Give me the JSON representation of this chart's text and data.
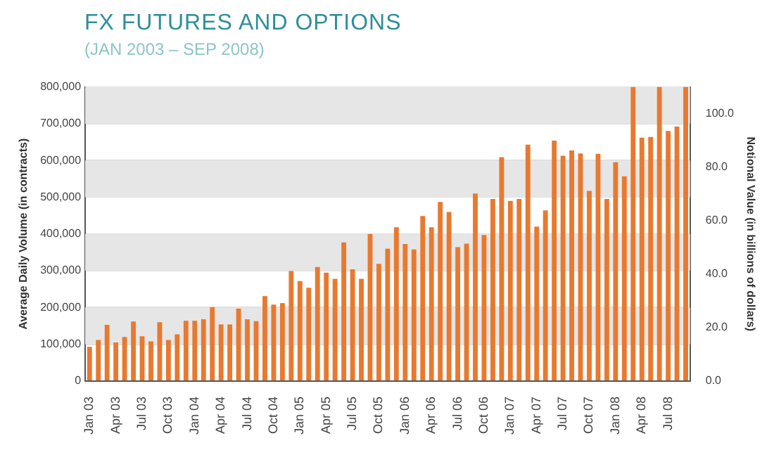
{
  "chart_data": {
    "type": "bar",
    "title": "FX FUTURES AND OPTIONS",
    "subtitle": "(JAN 2003 – SEP 2008)",
    "ylabel": "Average Daily Volume (in contracts)",
    "y2label": "Notional Value (in billions of dollars)",
    "categories": [
      "Jan 03",
      null,
      null,
      "Apr 03",
      null,
      null,
      "Jul 03",
      null,
      null,
      "Oct 03",
      null,
      null,
      "Jan 04",
      null,
      null,
      "Apr 04",
      null,
      null,
      "Jul 04",
      null,
      null,
      "Oct 04",
      null,
      null,
      "Jan 05",
      null,
      null,
      "Apr 05",
      null,
      null,
      "Jul 05",
      null,
      null,
      "Oct 05",
      null,
      null,
      "Jan 06",
      null,
      null,
      "Apr 06",
      null,
      null,
      "Jul 06",
      null,
      null,
      "Oct 06",
      null,
      null,
      "Jan 07",
      null,
      null,
      "Apr 07",
      null,
      null,
      "Jul 07",
      null,
      null,
      "Oct 07",
      null,
      null,
      "Jan 08",
      null,
      null,
      "Apr 08",
      null,
      null,
      "Jul 08",
      null,
      null
    ],
    "series": [
      {
        "color": "#e8792f",
        "values": [
          93000,
          112000,
          153000,
          105000,
          120000,
          162000,
          122000,
          108000,
          160000,
          112000,
          127000,
          164000,
          164000,
          168000,
          201000,
          154000,
          154000,
          197000,
          168000,
          163000,
          231000,
          208000,
          212000,
          299000,
          272000,
          254000,
          310000,
          295000,
          278000,
          377000,
          304000,
          278000,
          400000,
          319000,
          360000,
          418000,
          373000,
          358000,
          449000,
          418000,
          487000,
          460000,
          364000,
          374000,
          510000,
          397000,
          495000,
          609000,
          490000,
          495000,
          643000,
          420000,
          464000,
          654000,
          613000,
          627000,
          619000,
          517000,
          618000,
          495000,
          595000,
          557000,
          800000,
          662000,
          664000,
          800000,
          680000,
          692000,
          800000
        ]
      }
    ],
    "ylim": [
      0,
      800000
    ],
    "yticks": [
      0,
      {
        "value": 100000,
        "label": "100,000"
      },
      {
        "value": 200000,
        "label": "200,000"
      },
      {
        "value": 300000,
        "label": "300,000"
      },
      {
        "value": 400000,
        "label": "400,000"
      },
      {
        "value": 500000,
        "label": "500,000"
      },
      {
        "value": 600000,
        "label": "600,000"
      },
      {
        "value": 700000,
        "label": "700,000"
      },
      {
        "value": 800000,
        "label": "800,000"
      }
    ],
    "y2lim": [
      0,
      110
    ],
    "y2ticks": [
      {
        "value": 0,
        "label": "0.0"
      },
      {
        "value": 20,
        "label": "20.0"
      },
      {
        "value": 40,
        "label": "40.0"
      },
      {
        "value": 60,
        "label": "60.0"
      },
      {
        "value": 80,
        "label": "80.0"
      },
      {
        "value": 100,
        "label": "100.0"
      }
    ],
    "grid": "y"
  }
}
